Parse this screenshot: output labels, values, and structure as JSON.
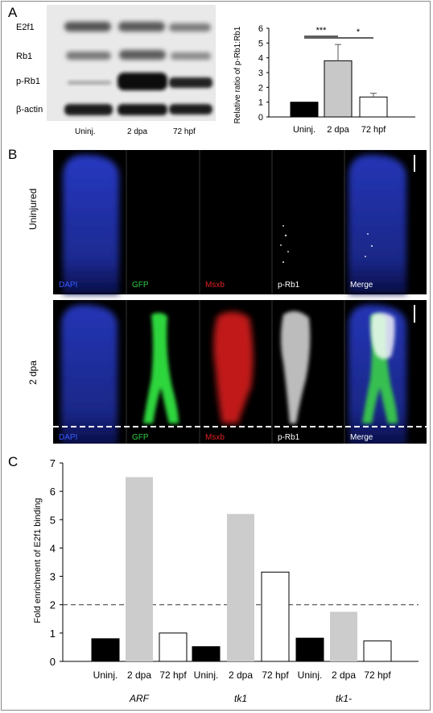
{
  "panel_letters": {
    "a": "A",
    "b": "B",
    "c": "C"
  },
  "blot": {
    "labels": [
      "E2f1",
      "Rb1",
      "p-Rb1",
      "β-actin"
    ],
    "lanes": [
      "Uninj.",
      "2 dpa",
      "72 hpf"
    ]
  },
  "micro": {
    "row_labels": [
      "Uninjured",
      "2 dpa"
    ],
    "channels": [
      "DAPI",
      "GFP",
      "Msxb",
      "p-Rb1",
      "Merge"
    ],
    "channel_colors": [
      "#3b5bff",
      "#2ecc40",
      "#e02020",
      "#ffffff",
      "#ffffff"
    ]
  },
  "chart_data": [
    {
      "type": "bar",
      "ylabel": "Relative ratio of p-Rb1:Rb1",
      "categories": [
        "Uninj.",
        "2 dpa",
        "72 hpf"
      ],
      "values": [
        1.0,
        3.8,
        1.35
      ],
      "error": [
        0,
        1.1,
        0.25
      ],
      "ylim": [
        0,
        6
      ],
      "yticks": [
        0,
        1,
        2,
        3,
        4,
        5,
        6
      ],
      "colors": [
        "#000000",
        "#c8c8c8",
        "#ffffff"
      ],
      "significance": [
        "***",
        "*"
      ]
    },
    {
      "type": "bar",
      "ylabel": "Fold enrichment of E2f1 binding",
      "groups": [
        "ARF",
        "tk1",
        "tk1-"
      ],
      "categories": [
        "Uninj.",
        "2 dpa",
        "72 hpf"
      ],
      "values": [
        [
          0.8,
          6.5,
          1.0
        ],
        [
          0.52,
          5.2,
          3.15
        ],
        [
          0.82,
          1.75,
          0.72
        ]
      ],
      "ylim": [
        0,
        7
      ],
      "yticks": [
        0,
        1,
        2,
        3,
        4,
        5,
        6,
        7
      ],
      "threshold": 2,
      "colors": [
        "#000000",
        "#cccccc",
        "#ffffff"
      ]
    }
  ]
}
